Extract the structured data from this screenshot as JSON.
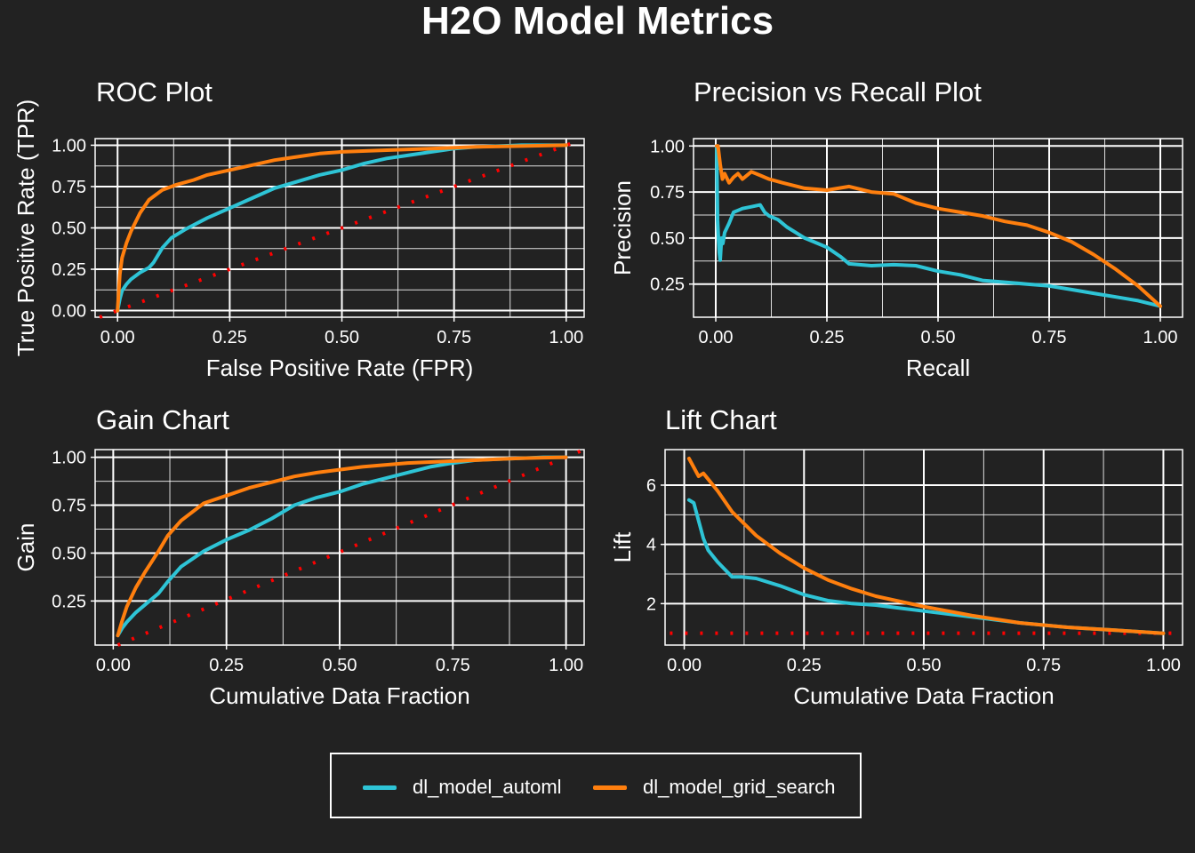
{
  "title": "H2O Model Metrics",
  "colors": {
    "automl": "#2EC4D6",
    "grid_search": "#FF7F0E",
    "baseline": "#FF0000",
    "background": "#222222",
    "grid": "#FFFFFF"
  },
  "legend": {
    "items": [
      {
        "label": "dl_model_automl",
        "color": "#2EC4D6"
      },
      {
        "label": "dl_model_grid_search",
        "color": "#FF7F0E"
      }
    ],
    "position": "bottom"
  },
  "chart_data": [
    {
      "type": "line",
      "title": "ROC Plot",
      "xlabel": "False Positive Rate (FPR)",
      "ylabel": "True Positive Rate (TPR)",
      "xlim": [
        -0.05,
        1.04
      ],
      "ylim": [
        -0.04,
        1.04
      ],
      "xticks": [
        0,
        0.25,
        0.5,
        0.75,
        1
      ],
      "yticks": [
        0,
        0.25,
        0.5,
        0.75,
        1
      ],
      "xtick_labels": [
        "0.00",
        "0.25",
        "0.50",
        "0.75",
        "1.00"
      ],
      "ytick_labels": [
        "0.00",
        "0.25",
        "0.50",
        "0.75",
        "1.00"
      ],
      "grid": true,
      "baseline": {
        "x": [
          -0.04,
          1.03
        ],
        "y": [
          -0.04,
          1.03
        ],
        "style": "dotted"
      },
      "series": [
        {
          "name": "dl_model_automl",
          "x": [
            0,
            0.005,
            0.01,
            0.02,
            0.03,
            0.05,
            0.07,
            0.08,
            0.1,
            0.12,
            0.15,
            0.2,
            0.25,
            0.3,
            0.35,
            0.4,
            0.45,
            0.5,
            0.55,
            0.6,
            0.65,
            0.7,
            0.75,
            0.8,
            0.85,
            0.9,
            0.95,
            1.0
          ],
          "y": [
            0,
            0.07,
            0.12,
            0.16,
            0.19,
            0.23,
            0.26,
            0.29,
            0.38,
            0.44,
            0.49,
            0.56,
            0.62,
            0.68,
            0.74,
            0.78,
            0.82,
            0.85,
            0.89,
            0.92,
            0.94,
            0.96,
            0.98,
            0.99,
            0.995,
            1.0,
            1.0,
            1.0
          ]
        },
        {
          "name": "dl_model_grid_search",
          "x": [
            0,
            0.005,
            0.01,
            0.02,
            0.03,
            0.05,
            0.07,
            0.1,
            0.13,
            0.17,
            0.2,
            0.25,
            0.3,
            0.35,
            0.4,
            0.45,
            0.5,
            0.6,
            0.7,
            0.8,
            0.9,
            1.0
          ],
          "y": [
            0,
            0.22,
            0.32,
            0.41,
            0.48,
            0.59,
            0.67,
            0.73,
            0.76,
            0.79,
            0.82,
            0.85,
            0.88,
            0.91,
            0.93,
            0.95,
            0.96,
            0.97,
            0.98,
            0.99,
            0.995,
            1.0
          ]
        }
      ]
    },
    {
      "type": "line",
      "title": "Precision vs Recall Plot",
      "xlabel": "Recall",
      "ylabel": "Precision",
      "xlim": [
        -0.05,
        1.05
      ],
      "ylim": [
        0.07,
        1.04
      ],
      "xticks": [
        0,
        0.25,
        0.5,
        0.75,
        1
      ],
      "yticks": [
        0.25,
        0.5,
        0.75,
        1
      ],
      "xtick_labels": [
        "0.00",
        "0.25",
        "0.50",
        "0.75",
        "1.00"
      ],
      "ytick_labels": [
        "0.25",
        "0.50",
        "0.75",
        "1.00"
      ],
      "grid": true,
      "series": [
        {
          "name": "dl_model_automl",
          "x": [
            0.002,
            0.004,
            0.006,
            0.008,
            0.01,
            0.013,
            0.016,
            0.02,
            0.03,
            0.04,
            0.05,
            0.06,
            0.08,
            0.1,
            0.11,
            0.12,
            0.14,
            0.16,
            0.18,
            0.2,
            0.22,
            0.25,
            0.28,
            0.3,
            0.35,
            0.4,
            0.45,
            0.5,
            0.55,
            0.6,
            0.65,
            0.7,
            0.75,
            0.8,
            0.85,
            0.9,
            0.95,
            1.0
          ],
          "y": [
            1.0,
            0.6,
            0.5,
            0.42,
            0.38,
            0.5,
            0.47,
            0.53,
            0.58,
            0.64,
            0.65,
            0.66,
            0.67,
            0.68,
            0.64,
            0.62,
            0.6,
            0.56,
            0.53,
            0.5,
            0.48,
            0.45,
            0.4,
            0.36,
            0.35,
            0.355,
            0.35,
            0.32,
            0.3,
            0.27,
            0.26,
            0.25,
            0.24,
            0.22,
            0.2,
            0.18,
            0.16,
            0.13
          ]
        },
        {
          "name": "dl_model_grid_search",
          "x": [
            0.002,
            0.005,
            0.01,
            0.015,
            0.02,
            0.03,
            0.04,
            0.05,
            0.06,
            0.08,
            0.1,
            0.12,
            0.15,
            0.2,
            0.25,
            0.3,
            0.35,
            0.4,
            0.45,
            0.5,
            0.55,
            0.6,
            0.65,
            0.7,
            0.75,
            0.8,
            0.85,
            0.9,
            0.95,
            1.0
          ],
          "y": [
            1.0,
            1.0,
            0.9,
            0.82,
            0.85,
            0.8,
            0.83,
            0.85,
            0.82,
            0.86,
            0.84,
            0.82,
            0.8,
            0.77,
            0.76,
            0.78,
            0.75,
            0.74,
            0.69,
            0.66,
            0.64,
            0.62,
            0.59,
            0.57,
            0.53,
            0.48,
            0.41,
            0.33,
            0.24,
            0.13
          ]
        }
      ]
    },
    {
      "type": "line",
      "title": "Gain Chart",
      "xlabel": "Cumulative Data Fraction",
      "ylabel": "Gain",
      "xlim": [
        -0.04,
        1.04
      ],
      "ylim": [
        0.02,
        1.04
      ],
      "xticks": [
        0,
        0.25,
        0.5,
        0.75,
        1
      ],
      "yticks": [
        0.25,
        0.5,
        0.75,
        1
      ],
      "xtick_labels": [
        "0.00",
        "0.25",
        "0.50",
        "0.75",
        "1.00"
      ],
      "ytick_labels": [
        "0.25",
        "0.50",
        "0.75",
        "1.00"
      ],
      "grid": true,
      "baseline": {
        "x": [
          0.01,
          1.04
        ],
        "y": [
          0.02,
          1.04
        ],
        "style": "dotted"
      },
      "series": [
        {
          "name": "dl_model_automl",
          "x": [
            0.01,
            0.02,
            0.03,
            0.05,
            0.07,
            0.1,
            0.12,
            0.15,
            0.2,
            0.25,
            0.3,
            0.35,
            0.4,
            0.45,
            0.5,
            0.55,
            0.6,
            0.65,
            0.7,
            0.75,
            0.8,
            0.85,
            0.9,
            0.95,
            1.0
          ],
          "y": [
            0.07,
            0.11,
            0.14,
            0.19,
            0.23,
            0.29,
            0.35,
            0.43,
            0.51,
            0.57,
            0.62,
            0.68,
            0.75,
            0.79,
            0.82,
            0.86,
            0.89,
            0.92,
            0.95,
            0.97,
            0.985,
            0.99,
            0.995,
            1.0,
            1.0
          ]
        },
        {
          "name": "dl_model_grid_search",
          "x": [
            0.01,
            0.02,
            0.03,
            0.05,
            0.07,
            0.1,
            0.12,
            0.15,
            0.2,
            0.25,
            0.3,
            0.35,
            0.4,
            0.45,
            0.5,
            0.55,
            0.6,
            0.65,
            0.7,
            0.75,
            0.8,
            0.85,
            0.9,
            0.95,
            1.0
          ],
          "y": [
            0.07,
            0.15,
            0.22,
            0.32,
            0.4,
            0.51,
            0.59,
            0.67,
            0.76,
            0.8,
            0.84,
            0.87,
            0.9,
            0.92,
            0.935,
            0.95,
            0.96,
            0.97,
            0.975,
            0.98,
            0.985,
            0.99,
            0.995,
            0.998,
            1.0
          ]
        }
      ]
    },
    {
      "type": "line",
      "title": "Lift Chart",
      "xlabel": "Cumulative Data Fraction",
      "ylabel": "Lift",
      "xlim": [
        -0.04,
        1.04
      ],
      "ylim": [
        0.6,
        7.2
      ],
      "xticks": [
        0,
        0.25,
        0.5,
        0.75,
        1
      ],
      "yticks": [
        2,
        4,
        6
      ],
      "xtick_labels": [
        "0.00",
        "0.25",
        "0.50",
        "0.75",
        "1.00"
      ],
      "ytick_labels": [
        "2",
        "4",
        "6"
      ],
      "grid": true,
      "baseline": {
        "x": [
          -0.03,
          1.03
        ],
        "y": [
          1,
          1
        ],
        "style": "dotted"
      },
      "series": [
        {
          "name": "dl_model_automl",
          "x": [
            0.01,
            0.02,
            0.03,
            0.04,
            0.05,
            0.07,
            0.1,
            0.12,
            0.15,
            0.2,
            0.25,
            0.3,
            0.35,
            0.4,
            0.5,
            0.6,
            0.7,
            0.8,
            0.9,
            1.0
          ],
          "y": [
            5.5,
            5.4,
            4.8,
            4.2,
            3.8,
            3.4,
            2.9,
            2.9,
            2.85,
            2.6,
            2.3,
            2.1,
            2.0,
            1.95,
            1.75,
            1.55,
            1.35,
            1.2,
            1.1,
            1.0
          ]
        },
        {
          "name": "dl_model_grid_search",
          "x": [
            0.01,
            0.02,
            0.03,
            0.04,
            0.05,
            0.07,
            0.1,
            0.15,
            0.2,
            0.25,
            0.3,
            0.35,
            0.4,
            0.5,
            0.6,
            0.7,
            0.8,
            0.9,
            1.0
          ],
          "y": [
            6.9,
            6.6,
            6.3,
            6.4,
            6.2,
            5.8,
            5.1,
            4.3,
            3.7,
            3.2,
            2.8,
            2.5,
            2.25,
            1.9,
            1.6,
            1.35,
            1.2,
            1.1,
            1.0
          ]
        }
      ]
    }
  ]
}
